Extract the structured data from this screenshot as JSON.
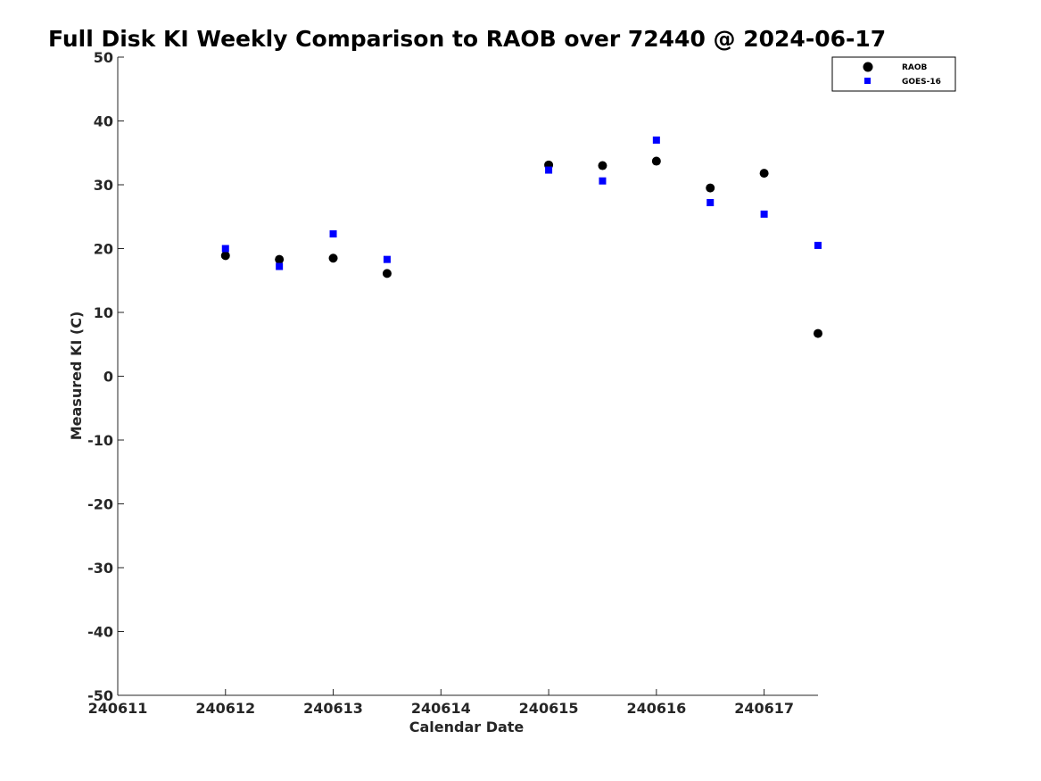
{
  "chart_data": {
    "type": "scatter",
    "title": "Full Disk KI Weekly Comparison to RAOB over 72440 @ 2024-06-17",
    "xlabel": "Calendar Date",
    "ylabel": "Measured KI (C)",
    "xlim": [
      240611,
      240617.5
    ],
    "ylim": [
      -50,
      50
    ],
    "xticks": [
      240611,
      240612,
      240613,
      240614,
      240615,
      240616,
      240617
    ],
    "xtick_labels": [
      "240611",
      "240612",
      "240613",
      "240614",
      "240615",
      "240616",
      "240617"
    ],
    "yticks": [
      50,
      40,
      30,
      20,
      10,
      0,
      -10,
      -20,
      -30,
      -40,
      -50
    ],
    "ytick_labels": [
      "50",
      "40",
      "30",
      "20",
      "10",
      "0",
      "-10",
      "-20",
      "-30",
      "-40",
      "-50"
    ],
    "grid": false,
    "legend_position": "top-right",
    "series": [
      {
        "name": "RAOB",
        "marker": "circle",
        "color": "#000000",
        "x": [
          240612,
          240612.5,
          240613,
          240613.5,
          240615,
          240615.5,
          240616,
          240616.5,
          240617,
          240617.5
        ],
        "y": [
          18.9,
          18.3,
          18.5,
          16.1,
          33.1,
          33.0,
          33.7,
          29.5,
          31.8,
          6.7
        ]
      },
      {
        "name": "GOES-16",
        "marker": "square",
        "color": "#0000ff",
        "x": [
          240612,
          240612.5,
          240613,
          240613.5,
          240615,
          240615.5,
          240616,
          240616.5,
          240617,
          240617.5
        ],
        "y": [
          20.0,
          17.2,
          22.3,
          18.3,
          32.3,
          30.6,
          37.0,
          27.2,
          25.4,
          20.5
        ]
      }
    ]
  }
}
